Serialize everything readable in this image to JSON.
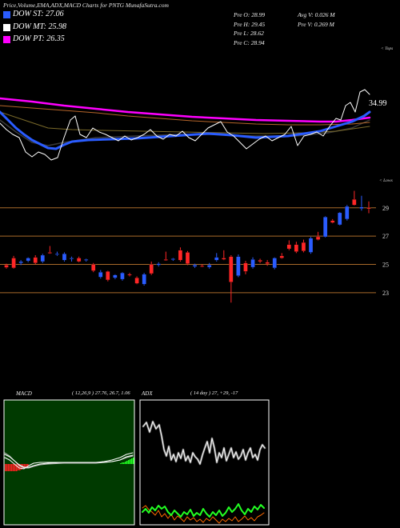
{
  "header": {
    "title": "Price,Volume,EMA,ADX,MACD Charts for PNTG MunafaSutra.com"
  },
  "legend": [
    {
      "label": "DOW ST: 27.06",
      "color": "#2a5cff"
    },
    {
      "label": "DOW MT: 25.98",
      "color": "#ffffff"
    },
    {
      "label": "DOW PT: 26.35",
      "color": "#ff00ff"
    }
  ],
  "stats": {
    "pre_o": "Pre O: 28.99",
    "pre_h": "Pre H: 29.45",
    "pre_l": "Pre L: 28.62",
    "pre_c": "Pre C: 28.94",
    "avg_v": "Avg V: 0.026 M",
    "pre_v": "Pre V: 0.269 M"
  },
  "chart_data": [
    {
      "type": "line",
      "corner_label": "< Tops",
      "value_label": "34.99",
      "line_colors": [
        "#b5652a",
        "#7a6a2a",
        "#3a3a3a"
      ]
    },
    {
      "type": "bar",
      "style": "candlestick",
      "corner_label": "< Lows",
      "yticks": [
        29,
        27,
        25,
        23
      ],
      "ylim": [
        22.2,
        30.4
      ],
      "grid": true,
      "grid_color": "#a86a2a",
      "up_color": "#2a5cff",
      "down_color": "#ff2626",
      "ohlc": [
        [
          24.95,
          25.05,
          24.7,
          24.78
        ],
        [
          25.45,
          25.6,
          24.7,
          24.75
        ],
        [
          25.1,
          25.3,
          24.95,
          25.2
        ],
        [
          25.25,
          25.5,
          25.15,
          25.45
        ],
        [
          25.5,
          25.65,
          25.0,
          25.1
        ],
        [
          25.2,
          25.75,
          25.1,
          25.65
        ],
        [
          25.85,
          26.3,
          25.75,
          25.8
        ],
        [
          25.7,
          25.9,
          25.6,
          25.75
        ],
        [
          25.3,
          25.85,
          25.2,
          25.75
        ],
        [
          25.4,
          25.55,
          25.2,
          25.45
        ],
        [
          25.45,
          25.55,
          25.15,
          25.2
        ],
        [
          25.3,
          25.4,
          25.2,
          25.35
        ],
        [
          25.0,
          25.1,
          24.45,
          24.55
        ],
        [
          24.1,
          24.6,
          24.0,
          24.45
        ],
        [
          24.5,
          24.55,
          23.8,
          23.9
        ],
        [
          24.05,
          24.3,
          23.95,
          24.25
        ],
        [
          23.95,
          24.45,
          23.85,
          24.4
        ],
        [
          24.3,
          24.4,
          24.15,
          24.25
        ],
        [
          24.05,
          24.15,
          23.6,
          23.65
        ],
        [
          23.6,
          24.4,
          23.5,
          24.3
        ],
        [
          25.0,
          25.2,
          24.25,
          24.35
        ],
        [
          24.95,
          25.15,
          24.85,
          25.05
        ],
        [
          25.35,
          25.9,
          25.25,
          25.3
        ],
        [
          25.35,
          25.45,
          25.25,
          25.4
        ],
        [
          26.0,
          26.2,
          25.2,
          25.3
        ],
        [
          25.85,
          25.95,
          24.95,
          25.05
        ],
        [
          24.85,
          25.05,
          24.75,
          24.95
        ],
        [
          24.9,
          25.0,
          24.8,
          24.85
        ],
        [
          24.8,
          25.1,
          24.7,
          24.95
        ],
        [
          25.3,
          25.8,
          25.2,
          25.5
        ],
        [
          25.45,
          26.0,
          25.3,
          25.35
        ],
        [
          25.55,
          25.65,
          22.3,
          23.75
        ],
        [
          24.2,
          25.7,
          24.1,
          25.55
        ],
        [
          25.1,
          25.25,
          24.3,
          24.5
        ],
        [
          24.8,
          25.5,
          24.7,
          25.35
        ],
        [
          25.3,
          25.4,
          25.1,
          25.2
        ],
        [
          25.15,
          25.3,
          24.9,
          25.05
        ],
        [
          24.75,
          25.5,
          24.65,
          25.45
        ],
        [
          25.6,
          25.8,
          25.4,
          25.45
        ],
        [
          26.4,
          26.7,
          26.0,
          26.1
        ],
        [
          26.4,
          26.6,
          25.8,
          25.9
        ],
        [
          26.55,
          26.75,
          25.85,
          25.95
        ],
        [
          25.85,
          26.95,
          25.75,
          26.85
        ],
        [
          26.95,
          27.3,
          26.7,
          26.75
        ],
        [
          26.95,
          28.4,
          26.9,
          28.35
        ],
        [
          28.1,
          28.2,
          27.9,
          27.95
        ],
        [
          27.8,
          28.7,
          27.75,
          28.65
        ],
        [
          28.2,
          29.2,
          28.1,
          29.1
        ],
        [
          29.6,
          30.2,
          29.15,
          29.2
        ],
        [
          28.95,
          29.85,
          28.8,
          29.05
        ],
        [
          28.99,
          29.45,
          28.62,
          28.94
        ]
      ]
    },
    {
      "type": "line",
      "title": "MACD",
      "params": "( 12,26,9 ) 27.76, 26.7, 1.06",
      "background": "#003a00",
      "line_color": "#ffffff",
      "negative_color": "#ff2020",
      "positive_color": "#22ff22"
    },
    {
      "type": "line",
      "title": "ADX",
      "params": "( 14 day ) 27, +29, -17",
      "background": "#000000",
      "adx_color": "#ffffff",
      "plus_di_color": "#22ff22",
      "minus_di_color": "#ff6a00"
    }
  ]
}
